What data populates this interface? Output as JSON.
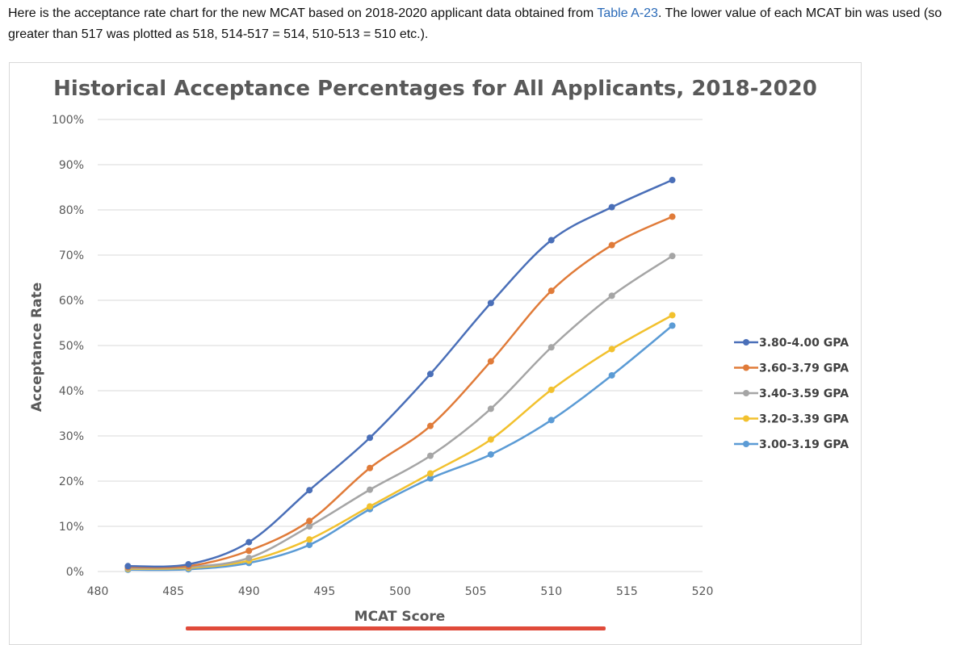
{
  "intro": {
    "part1": "Here is the acceptance rate chart for the new MCAT based on 2018-2020 applicant data obtained from ",
    "link": "Table A-23",
    "part2": ". The lower value of each MCAT bin was used (so greater than 517 was plotted as 518, 514-517 = 514, 510-513 = 510 etc.)."
  },
  "chart_data": {
    "type": "line",
    "title": "Historical Acceptance Percentages for All Applicants, 2018-2020",
    "xlabel": "MCAT Score",
    "ylabel": "Acceptance Rate",
    "xlim": [
      480,
      520
    ],
    "ylim": [
      0,
      100
    ],
    "xticks": [
      480,
      485,
      490,
      495,
      500,
      505,
      510,
      515,
      520
    ],
    "yticks": [
      0,
      10,
      20,
      30,
      40,
      50,
      60,
      70,
      80,
      90,
      100
    ],
    "yticks_suffix": "%",
    "grid": true,
    "legend": "right",
    "x": [
      482,
      486,
      490,
      494,
      498,
      502,
      506,
      510,
      514,
      518
    ],
    "series": [
      {
        "name": "3.80-4.00 GPA",
        "color": "#4a6fb8",
        "values": [
          1.2,
          1.6,
          6.5,
          18.0,
          29.6,
          43.7,
          59.4,
          73.3,
          80.6,
          86.6
        ]
      },
      {
        "name": "3.60-3.79 GPA",
        "color": "#e07b39",
        "values": [
          1.0,
          1.2,
          4.6,
          11.2,
          22.9,
          32.2,
          46.5,
          62.1,
          72.2,
          78.5
        ]
      },
      {
        "name": "3.40-3.59 GPA",
        "color": "#a5a5a5",
        "values": [
          0.8,
          1.0,
          3.0,
          10.0,
          18.1,
          25.6,
          36.0,
          49.6,
          61.0,
          69.8
        ]
      },
      {
        "name": "3.20-3.39 GPA",
        "color": "#f2c12e",
        "values": [
          0.6,
          0.8,
          2.4,
          7.1,
          14.4,
          21.7,
          29.2,
          40.2,
          49.2,
          56.7
        ]
      },
      {
        "name": "3.00-3.19 GPA",
        "color": "#5b9bd5",
        "values": [
          0.4,
          0.5,
          1.9,
          5.9,
          13.8,
          20.6,
          25.9,
          33.5,
          43.4,
          54.4
        ]
      }
    ]
  }
}
